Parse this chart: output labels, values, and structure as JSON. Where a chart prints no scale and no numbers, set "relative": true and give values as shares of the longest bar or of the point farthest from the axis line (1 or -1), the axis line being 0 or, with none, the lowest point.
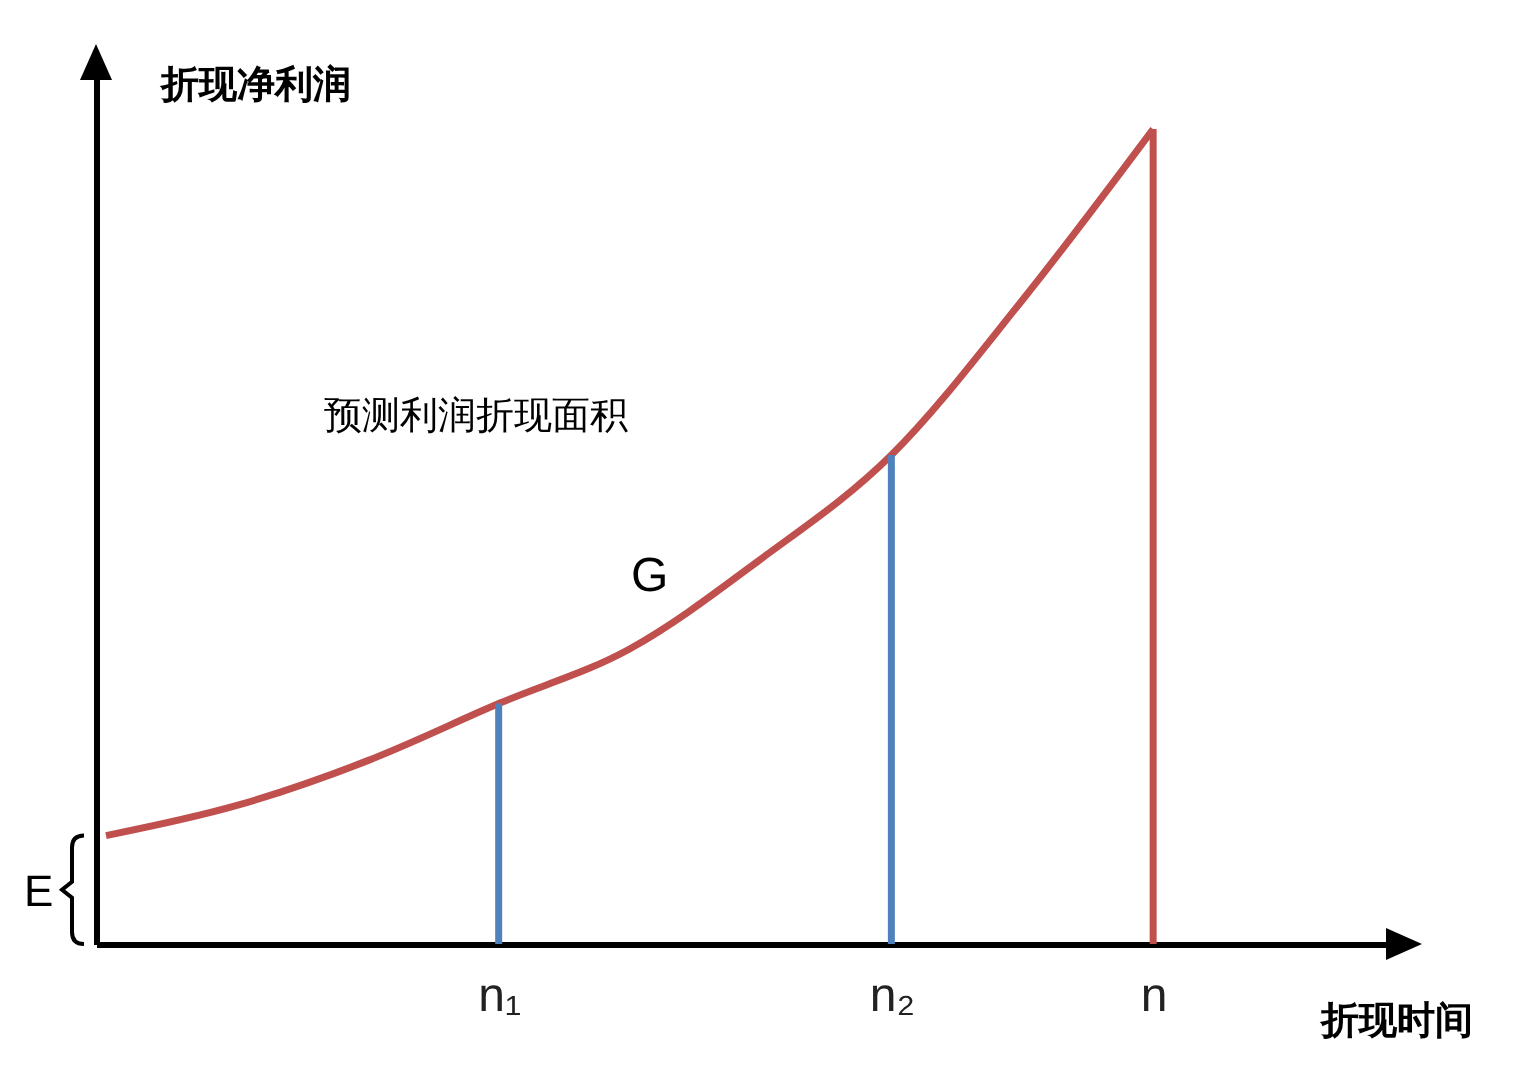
{
  "chart_data": {
    "type": "line",
    "relative": true,
    "xlabel": "折现时间",
    "ylabel": "折现净利润",
    "categories": [
      null,
      null,
      null,
      "n₁",
      null,
      null,
      "n₂",
      null,
      "n"
    ],
    "tick_labels": "x",
    "marker": "none",
    "line_style": "solid",
    "series": [
      {
        "name": "G",
        "color": "#c0504d",
        "values": [
          0.133,
          0.17,
          0.225,
          0.295,
          0.362,
          0.472,
          0.6,
          0.79,
          1
        ]
      },
      {
        "type": "bar",
        "colors": [
          null,
          null,
          null,
          "#4f81bd",
          null,
          null,
          "#4f81bd",
          null,
          "#c0504d"
        ],
        "values": [
          null,
          null,
          null,
          0.295,
          null,
          null,
          0.6,
          null,
          1
        ]
      }
    ],
    "annotations": [
      "预测利润折现面积",
      "E"
    ]
  }
}
